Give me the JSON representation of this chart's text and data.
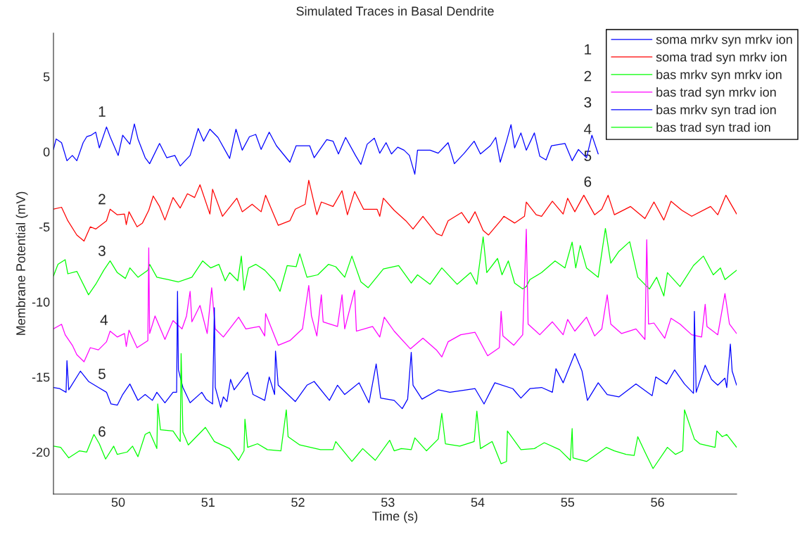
{
  "chart_data": {
    "type": "line",
    "title": "Simulated Traces in Basal Dendrite",
    "xlabel": "Time (s)",
    "ylabel": "Membrane Potential (mV)",
    "xlim": [
      49.28,
      56.88
    ],
    "ylim": [
      -22.8,
      7.9
    ],
    "xticks": [
      50,
      51,
      52,
      53,
      54,
      55,
      56
    ],
    "yticks": [
      -20,
      -15,
      -10,
      -5,
      0,
      5
    ],
    "grid": false,
    "legend": "top right",
    "marker": "none",
    "line_style": "solid",
    "annotations": [
      "1",
      "2",
      "3",
      "4",
      "5",
      "6",
      "1",
      "2",
      "3",
      "4",
      "5",
      "6"
    ],
    "series": [
      {
        "name": "soma mrkv syn mrkv ion",
        "color": "#0000ff",
        "x": [
          49.28,
          49.31,
          49.37,
          49.43,
          49.49,
          49.54,
          49.61,
          49.65,
          49.7,
          49.75,
          49.79,
          49.87,
          49.91,
          50.0,
          50.05,
          50.13,
          50.18,
          50.22,
          50.3,
          50.35,
          50.46,
          50.54,
          50.63,
          50.69,
          50.8,
          50.89,
          50.95,
          51.02,
          51.11,
          51.24,
          51.31,
          51.38,
          51.46,
          51.53,
          51.59,
          51.68,
          51.76,
          51.91,
          51.98,
          52.13,
          52.18,
          52.32,
          52.39,
          52.45,
          52.53,
          52.64,
          52.7,
          52.77,
          52.85,
          52.91,
          52.98,
          53.04,
          53.11,
          53.18,
          53.24,
          53.3,
          53.33,
          53.47,
          53.56,
          53.67,
          53.74,
          53.85,
          53.96,
          54.03,
          54.14,
          54.2,
          54.25,
          54.32,
          54.37,
          54.41,
          54.48,
          54.54,
          54.63,
          54.69,
          54.76,
          54.82,
          54.97,
          55.05,
          55.12,
          55.21,
          55.27,
          55.34
        ],
        "values": [
          0.15,
          0.85,
          0.6,
          -0.6,
          -0.25,
          -0.6,
          0.6,
          1.0,
          1.1,
          1.3,
          0.25,
          1.65,
          1.0,
          -0.25,
          1.1,
          0.5,
          1.85,
          0.85,
          -0.4,
          -0.8,
          0.55,
          -0.4,
          -0.25,
          -0.95,
          -0.25,
          1.55,
          0.7,
          1.5,
          0.95,
          -0.45,
          1.5,
          0.1,
          1.0,
          1.15,
          0.15,
          1.3,
          0.4,
          -0.7,
          0.4,
          0.4,
          -0.4,
          0.8,
          0.7,
          -0.15,
          0.95,
          -0.25,
          -0.85,
          0.5,
          0.9,
          -0.1,
          0.6,
          -0.15,
          0.3,
          0.1,
          -0.25,
          -1.5,
          0.1,
          0.1,
          -0.1,
          0.6,
          -0.8,
          -0.1,
          0.7,
          -0.15,
          0.4,
          0.95,
          -0.7,
          0.7,
          1.8,
          0.25,
          1.25,
          0.1,
          1.25,
          -0.3,
          -0.55,
          0.4,
          0.55,
          -0.6,
          0.15,
          -0.4,
          1.1,
          -0.15
        ]
      },
      {
        "name": "soma trad syn mrkv ion",
        "color": "#ff0000",
        "x": [
          49.28,
          49.37,
          49.44,
          49.54,
          49.62,
          49.69,
          49.75,
          49.87,
          49.91,
          49.99,
          50.07,
          50.09,
          50.12,
          50.21,
          50.27,
          50.34,
          50.39,
          50.46,
          50.52,
          50.61,
          50.69,
          50.77,
          50.85,
          50.91,
          51.02,
          51.05,
          51.16,
          51.32,
          51.38,
          51.49,
          51.59,
          51.64,
          51.78,
          51.91,
          51.97,
          52.08,
          52.12,
          52.21,
          52.26,
          52.39,
          52.49,
          52.55,
          52.63,
          52.73,
          52.88,
          52.91,
          52.95,
          53.07,
          53.2,
          53.28,
          53.39,
          53.54,
          53.6,
          53.67,
          53.82,
          53.9,
          53.97,
          54.06,
          54.12,
          54.26,
          54.29,
          54.41,
          54.52,
          54.54,
          54.65,
          54.71,
          54.83,
          54.95,
          55.0,
          55.08,
          55.18,
          55.3,
          55.38,
          55.45,
          55.52,
          55.7,
          55.86,
          55.96,
          56.07,
          56.15,
          56.27,
          56.38,
          56.59,
          56.67,
          56.76,
          56.88
        ],
        "values": [
          -3.83,
          -3.7,
          -4.6,
          -5.55,
          -5.95,
          -5.0,
          -5.15,
          -4.6,
          -3.83,
          -4.2,
          -4.15,
          -4.85,
          -4.0,
          -5.0,
          -4.75,
          -3.9,
          -2.95,
          -3.65,
          -4.55,
          -3.05,
          -3.75,
          -2.8,
          -3.05,
          -2.2,
          -4.15,
          -2.5,
          -4.3,
          -3.1,
          -4.0,
          -3.5,
          -4.0,
          -2.9,
          -4.9,
          -4.6,
          -3.83,
          -3.5,
          -1.9,
          -4.2,
          -3.35,
          -3.65,
          -2.6,
          -4.2,
          -2.65,
          -3.83,
          -3.83,
          -4.3,
          -3.1,
          -3.9,
          -4.6,
          -5.15,
          -4.3,
          -5.45,
          -5.6,
          -4.6,
          -4.05,
          -4.75,
          -4.0,
          -5.25,
          -5.55,
          -4.55,
          -4.3,
          -4.75,
          -4.3,
          -3.35,
          -4.2,
          -4.3,
          -3.3,
          -4.15,
          -3.1,
          -4.0,
          -2.9,
          -4.2,
          -3.83,
          -2.9,
          -4.2,
          -3.65,
          -4.45,
          -3.35,
          -4.55,
          -3.3,
          -3.9,
          -4.3,
          -3.65,
          -4.2,
          -2.9,
          -4.15
        ]
      },
      {
        "name": "bas mrkv syn mrkv ion",
        "color": "#00ff00",
        "x": [
          49.28,
          49.33,
          49.41,
          49.44,
          49.54,
          49.67,
          49.75,
          49.84,
          49.91,
          49.99,
          50.08,
          50.13,
          50.22,
          50.33,
          50.35,
          50.43,
          50.56,
          50.67,
          50.82,
          50.94,
          51.03,
          51.12,
          51.19,
          51.24,
          51.33,
          51.37,
          51.4,
          51.45,
          51.53,
          51.63,
          51.74,
          51.8,
          51.88,
          51.98,
          52.02,
          52.1,
          52.22,
          52.34,
          52.42,
          52.52,
          52.6,
          52.7,
          52.78,
          52.95,
          53.12,
          53.26,
          53.33,
          53.47,
          53.6,
          53.77,
          53.92,
          53.99,
          54.06,
          54.1,
          54.22,
          54.27,
          54.34,
          54.41,
          54.5,
          54.54,
          54.58,
          54.71,
          54.86,
          54.97,
          55.05,
          55.09,
          55.14,
          55.21,
          55.34,
          55.42,
          55.48,
          55.57,
          55.69,
          55.78,
          55.87,
          55.91,
          55.99,
          56.07,
          56.11,
          56.25,
          56.4,
          56.51,
          56.62,
          56.7,
          56.75,
          56.88
        ],
        "values": [
          -8.28,
          -7.5,
          -7.19,
          -8.13,
          -7.97,
          -9.53,
          -8.83,
          -7.89,
          -7.27,
          -8.05,
          -8.44,
          -7.74,
          -8.36,
          -7.89,
          -7.5,
          -8.36,
          -8.52,
          -8.67,
          -8.36,
          -7.27,
          -7.74,
          -7.5,
          -8.6,
          -8.05,
          -8.6,
          -6.95,
          -9.22,
          -7.74,
          -7.5,
          -7.89,
          -8.6,
          -9.3,
          -7.58,
          -7.66,
          -6.8,
          -8.36,
          -8.2,
          -7.5,
          -7.66,
          -8.36,
          -6.95,
          -8.67,
          -9.06,
          -7.81,
          -7.58,
          -8.75,
          -8.2,
          -8.83,
          -7.74,
          -8.83,
          -8.05,
          -8.83,
          -5.67,
          -8.05,
          -7.11,
          -8.2,
          -7.27,
          -8.75,
          -9.14,
          -8.98,
          -8.52,
          -8.05,
          -7.27,
          -7.74,
          -6.02,
          -7.74,
          -6.25,
          -7.74,
          -8.36,
          -5.11,
          -7.42,
          -6.64,
          -5.99,
          -8.36,
          -8.91,
          -9.14,
          -8.36,
          -9.61,
          -8.05,
          -8.98,
          -7.58,
          -6.95,
          -8.2,
          -7.74,
          -8.52,
          -7.89
        ]
      },
      {
        "name": "bas trad syn mrkv ion",
        "color": "#ff00ff",
        "x": [
          49.28,
          49.37,
          49.41,
          49.49,
          49.54,
          49.62,
          49.69,
          49.78,
          49.87,
          49.91,
          49.99,
          50.07,
          50.09,
          50.12,
          50.21,
          50.33,
          50.34,
          50.35,
          50.41,
          50.52,
          50.61,
          50.71,
          50.76,
          50.8,
          50.82,
          50.91,
          50.99,
          51.04,
          51.08,
          51.17,
          51.34,
          51.42,
          51.57,
          51.63,
          51.64,
          51.78,
          51.91,
          52.05,
          52.12,
          52.15,
          52.21,
          52.26,
          52.28,
          52.44,
          52.49,
          52.52,
          52.63,
          52.65,
          52.83,
          52.91,
          52.96,
          53.07,
          53.25,
          53.39,
          53.54,
          53.6,
          53.67,
          53.81,
          53.97,
          54.11,
          54.24,
          54.26,
          54.28,
          54.4,
          54.5,
          54.54,
          54.56,
          54.69,
          54.83,
          54.95,
          55.0,
          55.08,
          55.21,
          55.3,
          55.38,
          55.44,
          55.48,
          55.6,
          55.76,
          55.86,
          55.88,
          55.9,
          55.96,
          56.08,
          56.15,
          56.25,
          56.38,
          56.49,
          56.53,
          56.55,
          56.67,
          56.75,
          56.8,
          56.88
        ],
        "values": [
          -11.8,
          -11.49,
          -12.19,
          -12.89,
          -13.52,
          -13.99,
          -13.05,
          -13.2,
          -12.66,
          -11.95,
          -12.34,
          -12.11,
          -12.97,
          -11.88,
          -13.05,
          -12.58,
          -6.4,
          -12.11,
          -10.94,
          -12.5,
          -11.25,
          -11.8,
          -10.94,
          -9.3,
          -11.33,
          -10.24,
          -12.11,
          -9.06,
          -11.8,
          -12.34,
          -11.02,
          -11.8,
          -11.64,
          -12.27,
          -10.78,
          -12.89,
          -12.58,
          -11.8,
          -8.91,
          -10.94,
          -12.27,
          -9.53,
          -11.33,
          -11.64,
          -9.53,
          -11.8,
          -9.22,
          -11.95,
          -11.64,
          -12.34,
          -11.02,
          -11.95,
          -13.13,
          -12.42,
          -13.2,
          -13.67,
          -12.66,
          -12.19,
          -12.03,
          -13.59,
          -13.05,
          -10.63,
          -12.27,
          -12.89,
          -12.19,
          -5.16,
          -11.48,
          -12.19,
          -11.33,
          -12.19,
          -11.17,
          -11.95,
          -11.02,
          -12.27,
          -11.8,
          -9.53,
          -11.48,
          -12.11,
          -11.8,
          -12.5,
          -5.86,
          -11.48,
          -11.41,
          -12.42,
          -11.09,
          -11.48,
          -12.19,
          -12.34,
          -10.16,
          -11.64,
          -12.19,
          -9.45,
          -11.48,
          -12.11
        ]
      },
      {
        "name": "bas mrkv syn trad ion",
        "color": "#0000ff",
        "x": [
          49.28,
          49.35,
          49.42,
          49.43,
          49.45,
          49.58,
          49.67,
          49.78,
          49.87,
          49.92,
          49.99,
          50.05,
          50.13,
          50.22,
          50.3,
          50.38,
          50.43,
          50.52,
          50.61,
          50.65,
          50.66,
          50.67,
          50.72,
          50.8,
          50.93,
          50.98,
          51.05,
          51.07,
          51.08,
          51.14,
          51.17,
          51.21,
          51.25,
          51.29,
          51.44,
          51.5,
          51.63,
          51.68,
          51.74,
          51.75,
          51.78,
          51.97,
          52.1,
          52.18,
          52.35,
          52.44,
          52.52,
          52.68,
          52.79,
          52.87,
          52.92,
          53.07,
          53.16,
          53.22,
          53.26,
          53.28,
          53.38,
          53.56,
          53.69,
          53.97,
          54.07,
          54.19,
          54.39,
          54.48,
          54.58,
          54.71,
          54.83,
          54.87,
          54.95,
          55.08,
          55.16,
          55.22,
          55.34,
          55.44,
          55.57,
          55.76,
          55.94,
          55.98,
          56.1,
          56.19,
          56.3,
          56.4,
          56.41,
          56.43,
          56.53,
          56.6,
          56.67,
          56.75,
          56.77,
          56.81,
          56.83,
          56.88
        ],
        "values": [
          -15.7,
          -15.78,
          -16.02,
          -13.91,
          -15.86,
          -14.61,
          -15.3,
          -15.7,
          -16.02,
          -16.8,
          -16.88,
          -16.17,
          -15.47,
          -16.56,
          -16.17,
          -16.56,
          -16.02,
          -16.72,
          -16.02,
          -16.02,
          -9.3,
          -14.53,
          -15.7,
          -16.72,
          -16.02,
          -16.5,
          -16.8,
          -10.39,
          -15.7,
          -17.03,
          -16.33,
          -16.64,
          -15.16,
          -15.86,
          -14.69,
          -16.17,
          -16.56,
          -15.0,
          -16.17,
          -13.28,
          -15.55,
          -16.64,
          -15.55,
          -15.3,
          -16.56,
          -15.55,
          -16.17,
          -15.39,
          -16.72,
          -14.14,
          -16.41,
          -16.56,
          -17.11,
          -16.48,
          -13.36,
          -15.55,
          -16.48,
          -15.86,
          -16.02,
          -15.78,
          -16.8,
          -15.39,
          -15.78,
          -16.41,
          -15.78,
          -15.7,
          -16.02,
          -14.45,
          -15.39,
          -13.44,
          -14.61,
          -16.56,
          -15.39,
          -16.17,
          -16.33,
          -15.47,
          -16.25,
          -15.0,
          -15.47,
          -14.53,
          -15.47,
          -16.09,
          -10.63,
          -16.02,
          -14.22,
          -15.16,
          -15.55,
          -15.08,
          -15.7,
          -12.81,
          -14.61,
          -15.55
        ]
      },
      {
        "name": "bas trad syn trad ion",
        "color": "#00ff00",
        "x": [
          49.28,
          49.36,
          49.45,
          49.57,
          49.65,
          49.73,
          49.79,
          49.86,
          49.95,
          49.99,
          50.1,
          50.16,
          50.22,
          50.3,
          50.35,
          50.43,
          50.44,
          50.47,
          50.61,
          50.69,
          50.7,
          50.72,
          50.78,
          50.97,
          51.07,
          51.24,
          51.34,
          51.4,
          51.41,
          51.44,
          51.55,
          51.66,
          51.81,
          51.87,
          51.89,
          52.02,
          52.25,
          52.39,
          52.42,
          52.6,
          52.72,
          52.86,
          53.02,
          53.07,
          53.15,
          53.26,
          53.3,
          53.43,
          53.56,
          53.6,
          53.64,
          53.8,
          53.96,
          53.99,
          54.03,
          54.16,
          54.26,
          54.32,
          54.33,
          54.48,
          54.63,
          54.74,
          54.91,
          55.03,
          55.05,
          55.06,
          55.21,
          55.43,
          55.52,
          55.65,
          55.74,
          55.78,
          55.86,
          55.95,
          56.11,
          56.2,
          56.28,
          56.3,
          56.41,
          56.47,
          56.64,
          56.66,
          56.72,
          56.77,
          56.88
        ],
        "values": [
          -19.61,
          -19.69,
          -20.39,
          -19.92,
          -20.0,
          -18.83,
          -19.45,
          -20.47,
          -19.61,
          -20.16,
          -20.0,
          -19.61,
          -20.31,
          -18.83,
          -18.67,
          -19.77,
          -16.8,
          -18.52,
          -18.6,
          -19.3,
          -13.44,
          -18.67,
          -19.53,
          -18.36,
          -19.3,
          -19.77,
          -20.55,
          -19.92,
          -17.81,
          -19.69,
          -19.45,
          -19.84,
          -19.92,
          -17.19,
          -18.98,
          -19.53,
          -19.84,
          -19.84,
          -19.3,
          -20.63,
          -19.77,
          -20.55,
          -19.22,
          -19.92,
          -19.77,
          -19.84,
          -19.06,
          -19.92,
          -19.14,
          -17.42,
          -19.45,
          -19.61,
          -19.3,
          -17.27,
          -19.77,
          -19.3,
          -20.78,
          -20.63,
          -18.6,
          -19.84,
          -19.77,
          -19.38,
          -19.84,
          -20.55,
          -18.44,
          -20.39,
          -20.63,
          -19.69,
          -19.92,
          -20.16,
          -20.23,
          -18.98,
          -20.0,
          -21.1,
          -19.69,
          -20.16,
          -19.92,
          -17.19,
          -19.14,
          -19.45,
          -19.69,
          -18.6,
          -18.98,
          -18.83,
          -19.69
        ]
      }
    ]
  }
}
